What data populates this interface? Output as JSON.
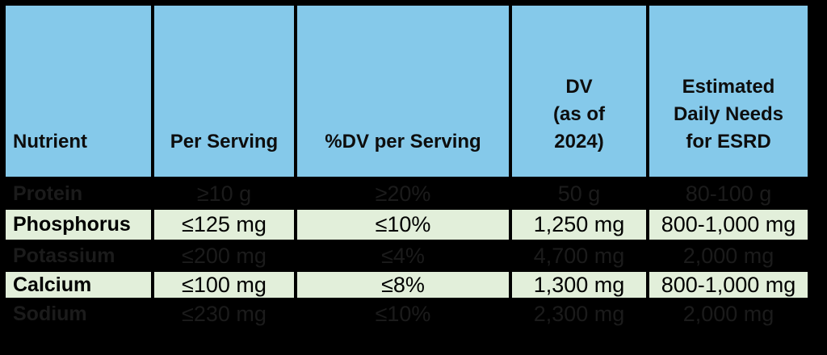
{
  "colors": {
    "page_bg": "#000000",
    "header_bg": "#85c9ea",
    "row_green_bg": "#e2efda",
    "row_dark_bg": "#000000",
    "row_dark_text": "#1b1b1b",
    "border": "#000000"
  },
  "table": {
    "columns": [
      {
        "label": "Nutrient"
      },
      {
        "label": "Per Serving"
      },
      {
        "label": "%DV per Serving"
      },
      {
        "label": "DV\n(as of\n2024)"
      },
      {
        "label": "Estimated\nDaily Needs\nfor ESRD"
      }
    ],
    "rows": [
      {
        "theme": "dark",
        "cells": [
          "Protein",
          "≥10 g",
          "≥20%",
          "50 g",
          "80-100 g"
        ]
      },
      {
        "theme": "green",
        "cells": [
          "Phosphorus",
          "≤125 mg",
          "≤10%",
          "1,250 mg",
          "800-1,000 mg"
        ]
      },
      {
        "theme": "dark",
        "cells": [
          "Potassium",
          "≤200 mg",
          "≤4%",
          "4,700 mg",
          "2,000 mg"
        ]
      },
      {
        "theme": "green",
        "cells": [
          "Calcium",
          "≤100 mg",
          "≤8%",
          "1,300 mg",
          "800-1,000 mg"
        ]
      },
      {
        "theme": "dark",
        "cells": [
          "Sodium",
          "≤230 mg",
          "≤10%",
          "2,300 mg",
          "2,000 mg"
        ]
      }
    ]
  },
  "chart_data": {
    "type": "table",
    "columns": [
      "Nutrient",
      "Per Serving",
      "%DV per Serving",
      "DV (as of 2024)",
      "Estimated Daily Needs for ESRD"
    ],
    "rows": [
      [
        "Protein",
        "≥10 g",
        "≥20%",
        "50 g",
        "80-100 g"
      ],
      [
        "Phosphorus",
        "≤125 mg",
        "≤10%",
        "1,250 mg",
        "800-1,000 mg"
      ],
      [
        "Potassium",
        "≤200 mg",
        "≤4%",
        "4,700 mg",
        "2,000 mg"
      ],
      [
        "Calcium",
        "≤100 mg",
        "≤8%",
        "1,300 mg",
        "800-1,000 mg"
      ],
      [
        "Sodium",
        "≤230 mg",
        "≤10%",
        "2,300 mg",
        "2,000 mg"
      ]
    ]
  }
}
